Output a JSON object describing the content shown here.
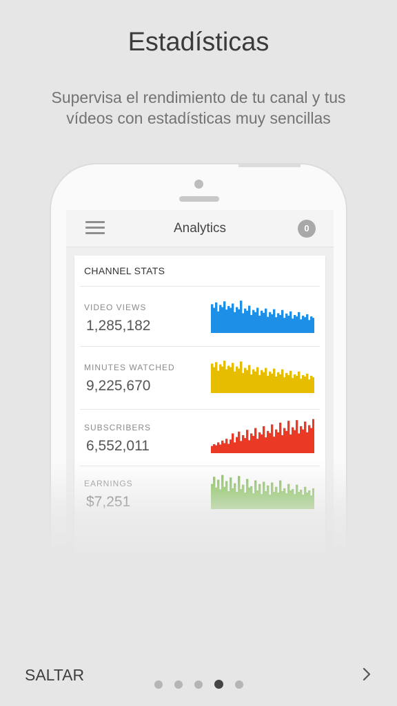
{
  "header": {
    "title": "Estadísticas",
    "subtitle": "Supervisa el rendimiento de tu canal y tus vídeos con estadísticas muy sencillas"
  },
  "app": {
    "title": "Analytics",
    "notification_count": "0",
    "card_title": "CHANNEL STATS",
    "stats": [
      {
        "label": "VIDEO VIEWS",
        "value": "1,285,182",
        "color": "#1e8fe6",
        "series": [
          0.8,
          0.7,
          0.85,
          0.6,
          0.78,
          0.72,
          0.88,
          0.65,
          0.75,
          0.7,
          0.82,
          0.58,
          0.72,
          0.66,
          0.9,
          0.55,
          0.68,
          0.62,
          0.76,
          0.5,
          0.64,
          0.58,
          0.7,
          0.48,
          0.62,
          0.56,
          0.68,
          0.45,
          0.58,
          0.52,
          0.66,
          0.44,
          0.55,
          0.5,
          0.64,
          0.42,
          0.54,
          0.48,
          0.6,
          0.4,
          0.5,
          0.46,
          0.58,
          0.38,
          0.48,
          0.44,
          0.52,
          0.36,
          0.46,
          0.42
        ]
      },
      {
        "label": "MINUTES WATCHED",
        "value": "9,225,670",
        "color": "#e6bd00",
        "series": [
          0.82,
          0.72,
          0.86,
          0.62,
          0.8,
          0.74,
          0.9,
          0.66,
          0.76,
          0.72,
          0.84,
          0.6,
          0.74,
          0.68,
          0.88,
          0.56,
          0.7,
          0.64,
          0.78,
          0.52,
          0.66,
          0.6,
          0.72,
          0.5,
          0.64,
          0.58,
          0.7,
          0.48,
          0.6,
          0.54,
          0.68,
          0.46,
          0.58,
          0.52,
          0.66,
          0.44,
          0.56,
          0.5,
          0.62,
          0.42,
          0.52,
          0.48,
          0.6,
          0.4,
          0.5,
          0.46,
          0.54,
          0.38,
          0.48,
          0.44
        ]
      },
      {
        "label": "SUBSCRIBERS",
        "value": "6,552,011",
        "color": "#ea3a26",
        "series": [
          0.2,
          0.25,
          0.22,
          0.3,
          0.24,
          0.35,
          0.28,
          0.4,
          0.26,
          0.38,
          0.55,
          0.3,
          0.45,
          0.6,
          0.34,
          0.5,
          0.42,
          0.65,
          0.36,
          0.55,
          0.48,
          0.7,
          0.4,
          0.58,
          0.52,
          0.75,
          0.44,
          0.62,
          0.56,
          0.8,
          0.46,
          0.66,
          0.58,
          0.85,
          0.5,
          0.7,
          0.62,
          0.9,
          0.52,
          0.72,
          0.64,
          0.92,
          0.55,
          0.75,
          0.66,
          0.88,
          0.58,
          0.78,
          0.7,
          0.95
        ]
      },
      {
        "label": "EARNINGS",
        "value": "$7,251",
        "color": "#7cc04a",
        "series": [
          0.7,
          0.9,
          0.6,
          0.82,
          0.55,
          0.95,
          0.62,
          0.78,
          0.5,
          0.88,
          0.58,
          0.72,
          0.48,
          0.92,
          0.56,
          0.68,
          0.46,
          0.84,
          0.6,
          0.64,
          0.44,
          0.8,
          0.52,
          0.7,
          0.42,
          0.76,
          0.5,
          0.66,
          0.4,
          0.74,
          0.48,
          0.62,
          0.46,
          0.8,
          0.5,
          0.58,
          0.44,
          0.7,
          0.52,
          0.56,
          0.42,
          0.68,
          0.48,
          0.54,
          0.4,
          0.62,
          0.46,
          0.52,
          0.38,
          0.58
        ]
      }
    ]
  },
  "footer": {
    "skip_label": "SALTAR",
    "page_count": 5,
    "active_page": 4
  }
}
